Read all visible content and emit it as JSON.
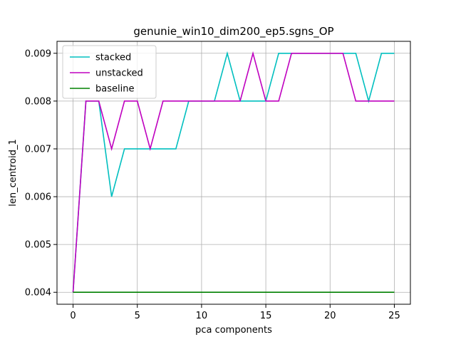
{
  "chart_data": {
    "type": "line",
    "title": "genunie_win10_dim200_ep5.sgns_OP",
    "xlabel": "pca components",
    "ylabel": "len_centroid_1",
    "xlim": [
      -1.25,
      26.25
    ],
    "ylim": [
      0.00375,
      0.00925
    ],
    "xticks": [
      0,
      5,
      10,
      15,
      20,
      25
    ],
    "xtick_labels": [
      "0",
      "5",
      "10",
      "15",
      "20",
      "25"
    ],
    "yticks": [
      0.004,
      0.005,
      0.006,
      0.007,
      0.008,
      0.009
    ],
    "ytick_labels": [
      "0.004",
      "0.005",
      "0.006",
      "0.007",
      "0.008",
      "0.009"
    ],
    "grid": true,
    "legend_position": "top-left",
    "x": [
      0,
      1,
      2,
      3,
      4,
      5,
      6,
      7,
      8,
      9,
      10,
      11,
      12,
      13,
      14,
      15,
      16,
      17,
      18,
      19,
      20,
      21,
      22,
      23,
      24,
      25
    ],
    "series": [
      {
        "name": "stacked",
        "color": "#00bfbf",
        "values": [
          0.004,
          0.008,
          0.008,
          0.006,
          0.007,
          0.007,
          0.007,
          0.007,
          0.007,
          0.008,
          0.008,
          0.008,
          0.009,
          0.008,
          0.008,
          0.008,
          0.009,
          0.009,
          0.009,
          0.009,
          0.009,
          0.009,
          0.009,
          0.008,
          0.009,
          0.009
        ]
      },
      {
        "name": "unstacked",
        "color": "#bf00bf",
        "values": [
          0.004,
          0.008,
          0.008,
          0.007,
          0.008,
          0.008,
          0.007,
          0.008,
          0.008,
          0.008,
          0.008,
          0.008,
          0.008,
          0.008,
          0.009,
          0.008,
          0.008,
          0.009,
          0.009,
          0.009,
          0.009,
          0.009,
          0.008,
          0.008,
          0.008,
          0.008
        ]
      },
      {
        "name": "baseline",
        "color": "#008000",
        "values": [
          0.004,
          0.004,
          0.004,
          0.004,
          0.004,
          0.004,
          0.004,
          0.004,
          0.004,
          0.004,
          0.004,
          0.004,
          0.004,
          0.004,
          0.004,
          0.004,
          0.004,
          0.004,
          0.004,
          0.004,
          0.004,
          0.004,
          0.004,
          0.004,
          0.004,
          0.004
        ]
      }
    ]
  }
}
